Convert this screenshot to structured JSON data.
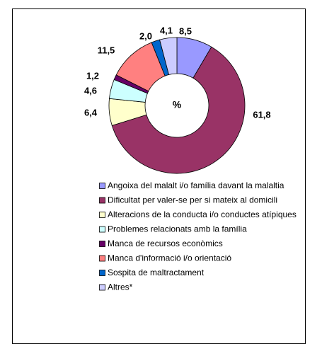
{
  "chart_data": {
    "type": "donut",
    "center_label": "%",
    "categories": [
      "Angoixa del malalt i/o família davant la malaltia",
      "Dificultat per valer-se per si mateix al domicili",
      "Alteracions de la conducta i/o conductes atípiques",
      "Problemes relacionats amb la família",
      "Manca de recursos econòmics",
      "Manca d'informació i/o orientació",
      "Sospita de maltractament",
      "Altres*"
    ],
    "values": [
      8.5,
      61.8,
      6.4,
      4.6,
      1.2,
      11.5,
      2.0,
      4.1
    ],
    "value_labels": [
      "8,5",
      "61,8",
      "6,4",
      "4,6",
      "1,2",
      "11,5",
      "2,0",
      "4,1"
    ],
    "colors": [
      "#9999ff",
      "#993366",
      "#ffffcc",
      "#ccffff",
      "#660066",
      "#ff8080",
      "#0066cc",
      "#ccccff"
    ]
  }
}
